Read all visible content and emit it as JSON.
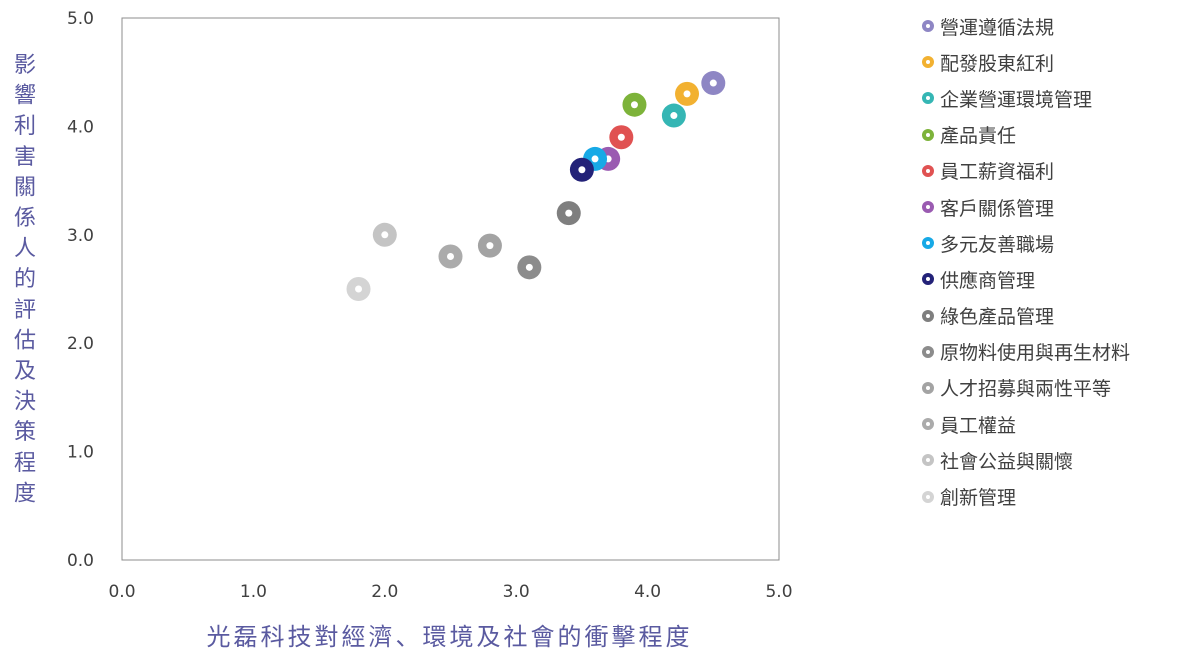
{
  "chart_data": {
    "type": "scatter",
    "title": "",
    "xlabel": "光磊科技對經濟、環境及社會的衝擊程度",
    "ylabel": "影響利害關係人的評估及決策程度",
    "xlim": [
      0,
      5
    ],
    "ylim": [
      0,
      5
    ],
    "x_ticks": [
      "0.0",
      "1.0",
      "2.0",
      "3.0",
      "4.0",
      "5.0"
    ],
    "y_ticks": [
      "0.0",
      "1.0",
      "2.0",
      "3.0",
      "4.0",
      "5.0"
    ],
    "grid": false,
    "legend_position": "right",
    "series": [
      {
        "name": "營運遵循法規",
        "color": "#8E86C4",
        "x": [
          4.5
        ],
        "y": [
          4.4
        ]
      },
      {
        "name": "配發股東紅利",
        "color": "#F2B131",
        "x": [
          4.3
        ],
        "y": [
          4.3
        ]
      },
      {
        "name": "企業營運環境管理",
        "color": "#35B6B4",
        "x": [
          4.2
        ],
        "y": [
          4.1
        ]
      },
      {
        "name": "產品責任",
        "color": "#7DB33A",
        "x": [
          3.9
        ],
        "y": [
          4.2
        ]
      },
      {
        "name": "員工薪資福利",
        "color": "#E05252",
        "x": [
          3.8
        ],
        "y": [
          3.9
        ]
      },
      {
        "name": "客戶關係管理",
        "color": "#9A5BB1",
        "x": [
          3.7
        ],
        "y": [
          3.7
        ]
      },
      {
        "name": "多元友善職場",
        "color": "#17A9E6",
        "x": [
          3.6
        ],
        "y": [
          3.7
        ]
      },
      {
        "name": "供應商管理",
        "color": "#232278",
        "x": [
          3.5
        ],
        "y": [
          3.6
        ]
      },
      {
        "name": "綠色產品管理",
        "color": "#7F7F7F",
        "x": [
          3.4
        ],
        "y": [
          3.2
        ]
      },
      {
        "name": "原物料使用與再生材料",
        "color": "#8C8C8C",
        "x": [
          3.1
        ],
        "y": [
          2.7
        ]
      },
      {
        "name": "人才招募與兩性平等",
        "color": "#A3A3A3",
        "x": [
          2.8
        ],
        "y": [
          2.9
        ]
      },
      {
        "name": "員工權益",
        "color": "#ABABAB",
        "x": [
          2.5
        ],
        "y": [
          2.8
        ]
      },
      {
        "name": "社會公益與關懷",
        "color": "#C4C4C4",
        "x": [
          2.0
        ],
        "y": [
          3.0
        ]
      },
      {
        "name": "創新管理",
        "color": "#D4D4D4",
        "x": [
          1.8
        ],
        "y": [
          2.5
        ]
      }
    ]
  }
}
